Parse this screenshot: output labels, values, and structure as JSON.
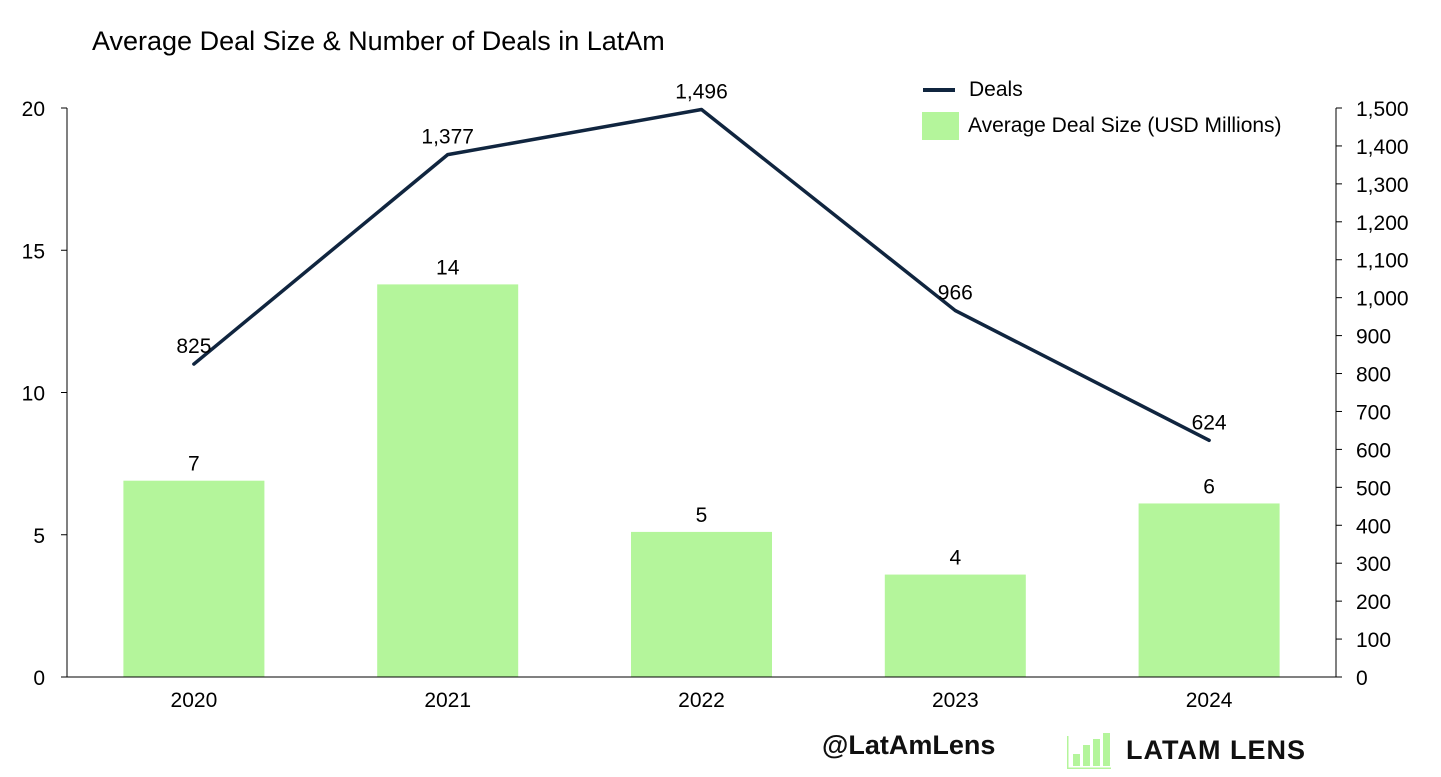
{
  "chart_data": {
    "type": "bar+line",
    "title": "Average Deal Size & Number of Deals in LatAm",
    "categories": [
      "2020",
      "2021",
      "2022",
      "2023",
      "2024"
    ],
    "series": [
      {
        "name": "Average Deal Size (USD Millions)",
        "type": "bar",
        "axis": "left",
        "color": "#b4f59b",
        "values": [
          6.9,
          13.8,
          5.1,
          3.6,
          6.1
        ],
        "labels": [
          "7",
          "14",
          "5",
          "4",
          "6"
        ]
      },
      {
        "name": "Deals",
        "type": "line",
        "axis": "right",
        "color": "#10253f",
        "values": [
          825,
          1377,
          1496,
          966,
          624
        ],
        "labels": [
          "825",
          "1,377",
          "1,496",
          "966",
          "624"
        ]
      }
    ],
    "y_left": {
      "min": 0,
      "max": 20,
      "ticks": [
        "0",
        "5",
        "10",
        "15",
        "20"
      ]
    },
    "y_right": {
      "min": 0,
      "max": 1500,
      "ticks": [
        "0",
        "100",
        "200",
        "300",
        "400",
        "500",
        "600",
        "700",
        "800",
        "900",
        "1,000",
        "1,100",
        "1,200",
        "1,300",
        "1,400",
        "1,500"
      ]
    },
    "legend": [
      {
        "label": "Deals",
        "symbol": "line"
      },
      {
        "label": "Average Deal Size (USD Millions)",
        "symbol": "box"
      }
    ],
    "legend_position": "top-right",
    "grid": false
  },
  "footer": {
    "handle": "@LatAmLens",
    "brand": "LATAM LENS",
    "brand_icon": "bar-chart-logo-icon"
  }
}
